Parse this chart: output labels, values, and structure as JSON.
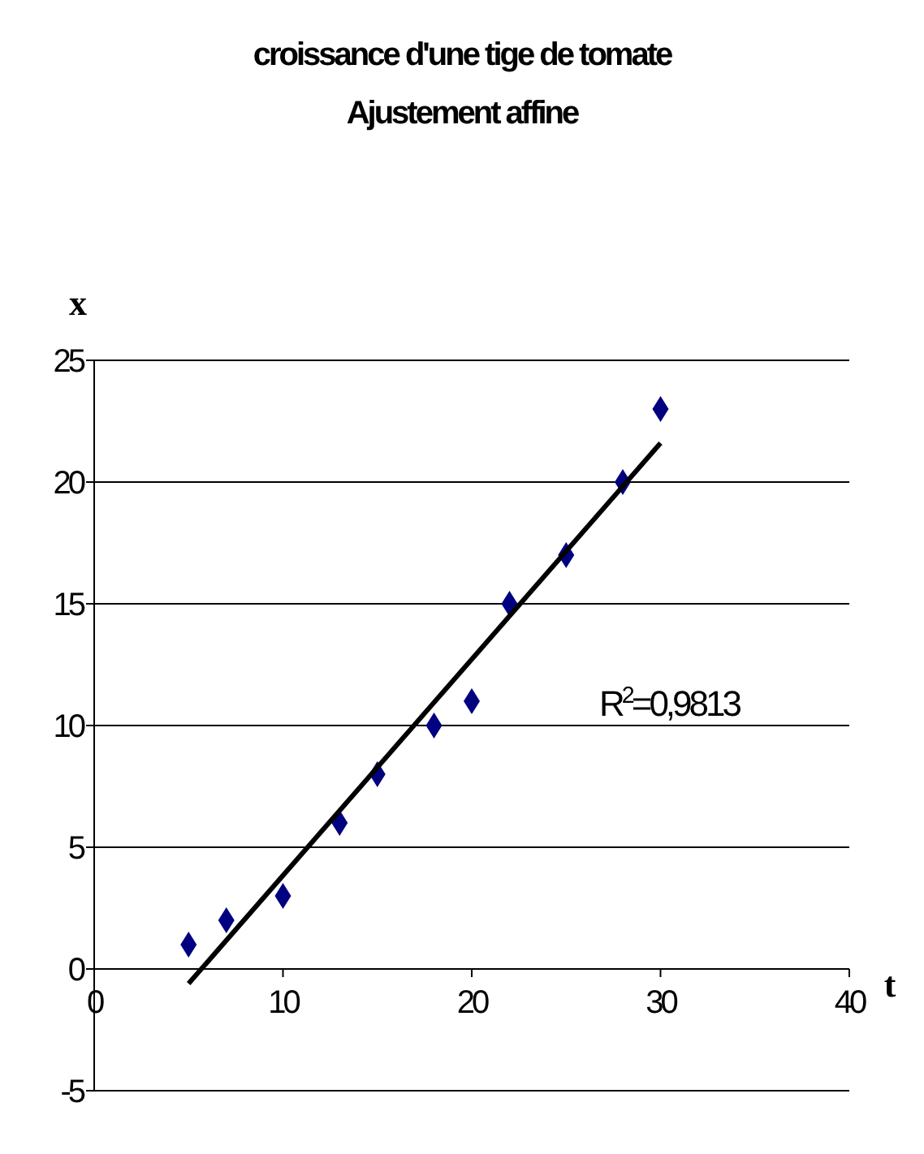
{
  "chart_data": {
    "type": "scatter",
    "title": "croissance d'une tige de tomate",
    "subtitle": "Ajustement affine",
    "xlabel": "t",
    "ylabel": "x",
    "xlim": [
      0,
      40
    ],
    "xticks": [
      0,
      10,
      20,
      30,
      40
    ],
    "ylim": [
      -5,
      25
    ],
    "yticks": [
      -5,
      0,
      5,
      10,
      15,
      20,
      25
    ],
    "grid": "y",
    "marker": "diamond",
    "series": [
      {
        "color": "#000080",
        "x": [
          5,
          7,
          10,
          13,
          15,
          18,
          20,
          22,
          25,
          28,
          30
        ],
        "values": [
          1,
          2,
          3,
          6,
          8,
          10,
          11,
          15,
          17,
          20,
          23
        ]
      },
      {
        "type": "line",
        "color": "#000000",
        "marker": "none",
        "line_style": "solid",
        "x": [
          5,
          30
        ],
        "values": [
          -0.6,
          21.6
        ]
      }
    ],
    "annotations": [
      "R$^{2}$=0,9813"
    ]
  }
}
